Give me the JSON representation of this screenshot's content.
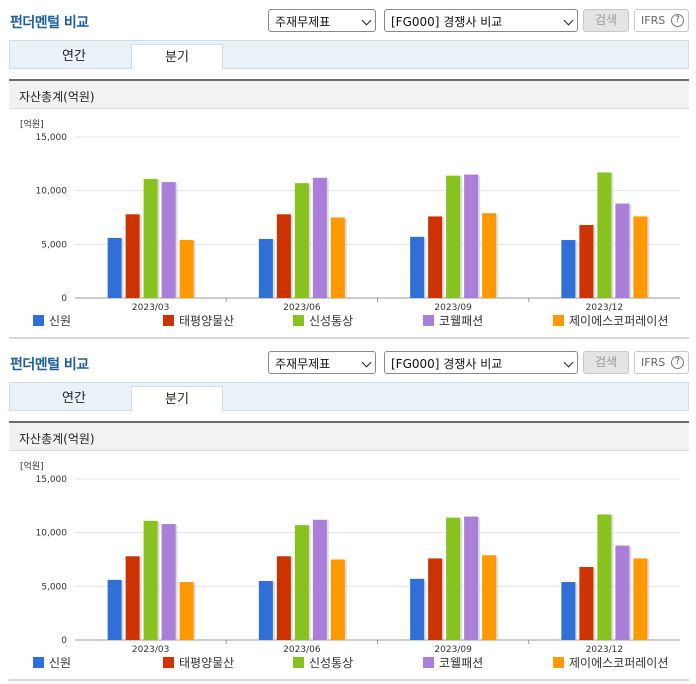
{
  "colors": {
    "title": "#1d5f9c",
    "series": [
      "#2f6fd6",
      "#cc3300",
      "#88c21e",
      "#a97fd9",
      "#ff9900"
    ]
  },
  "panels": [
    {
      "title": "펀더멘털 비교",
      "select_metric": "주재무제표",
      "select_compare": "[FG000] 경쟁사 비교",
      "search_label": "검색",
      "ifrs_label": "IFRS",
      "help_glyph": "?",
      "tabs": [
        {
          "label": "연간"
        },
        {
          "label": "분기"
        }
      ],
      "active_tab": "분기",
      "section_title": "자산총계(억원)",
      "unit_label": "[억원]"
    },
    {
      "title": "펀더멘털 비교",
      "select_metric": "주재무제표",
      "select_compare": "[FG000] 경쟁사 비교",
      "search_label": "검색",
      "ifrs_label": "IFRS",
      "help_glyph": "?",
      "tabs": [
        {
          "label": "연간"
        },
        {
          "label": "분기"
        }
      ],
      "active_tab": "분기",
      "section_title": "자산총계(억원)",
      "unit_label": "[억원]"
    }
  ],
  "chart_data": [
    {
      "type": "bar",
      "title": "자산총계(억원)",
      "categories": [
        "2023/03",
        "2023/06",
        "2023/09",
        "2023/12"
      ],
      "ylim": [
        0,
        15000
      ],
      "yticks": [
        "0",
        "5,000",
        "10,000",
        "15,000"
      ],
      "grid": true,
      "legend": "bottom",
      "series": [
        {
          "name": "신원",
          "values": [
            5600,
            5500,
            5700,
            5400
          ]
        },
        {
          "name": "태평양물산",
          "values": [
            7800,
            7800,
            7600,
            6800
          ]
        },
        {
          "name": "신성통상",
          "values": [
            11100,
            10700,
            11400,
            11700
          ]
        },
        {
          "name": "코웰패션",
          "values": [
            10800,
            11200,
            11500,
            8800
          ]
        },
        {
          "name": "제이에스코퍼레이션",
          "values": [
            5400,
            7500,
            7900,
            7600
          ]
        }
      ]
    },
    {
      "type": "bar",
      "title": "자산총계(억원)",
      "categories": [
        "2023/03",
        "2023/06",
        "2023/09",
        "2023/12"
      ],
      "ylim": [
        0,
        15000
      ],
      "yticks": [
        "0",
        "5,000",
        "10,000",
        "15,000"
      ],
      "grid": true,
      "legend": "bottom",
      "series": [
        {
          "name": "신원",
          "values": [
            5600,
            5500,
            5700,
            5400
          ]
        },
        {
          "name": "태평양물산",
          "values": [
            7800,
            7800,
            7600,
            6800
          ]
        },
        {
          "name": "신성통상",
          "values": [
            11100,
            10700,
            11400,
            11700
          ]
        },
        {
          "name": "코웰패션",
          "values": [
            10800,
            11200,
            11500,
            8800
          ]
        },
        {
          "name": "제이에스코퍼레이션",
          "values": [
            5400,
            7500,
            7900,
            7600
          ]
        }
      ]
    }
  ]
}
